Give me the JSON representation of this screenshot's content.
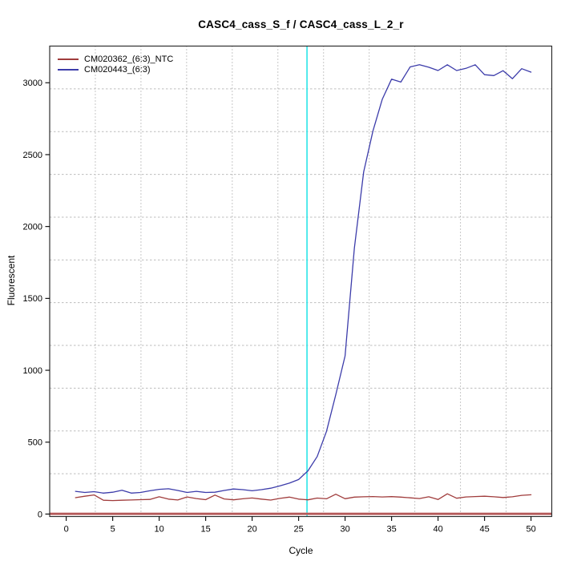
{
  "chart_data": {
    "type": "line",
    "title": "CASC4_cass_S_f / CASC4_cass_L_2_r",
    "xlabel": "Cycle",
    "ylabel": "Fluorescent",
    "xlim": [
      -1.78,
      52.23
    ],
    "ylim": [
      -17,
      3255
    ],
    "xticks": [
      0,
      5,
      10,
      15,
      20,
      25,
      30,
      35,
      40,
      45,
      50
    ],
    "yticks": [
      0,
      500,
      1000,
      1500,
      2000,
      2500,
      3000
    ],
    "grid": {
      "divisions": 11,
      "v_color": "#8f8f8f",
      "h_color": "#bdbdbd",
      "style": "dotted"
    },
    "legend_position": "top-left",
    "x": [
      1,
      2,
      3,
      4,
      5,
      6,
      7,
      8,
      9,
      10,
      11,
      12,
      13,
      14,
      15,
      16,
      17,
      18,
      19,
      20,
      21,
      22,
      23,
      24,
      25,
      26,
      27,
      28,
      29,
      30,
      31,
      32,
      33,
      34,
      35,
      36,
      37,
      38,
      39,
      40,
      41,
      42,
      43,
      44,
      45,
      46,
      47,
      48,
      49,
      50
    ],
    "series": [
      {
        "name": "CM020362_(6:3)_NTC",
        "color": "#a03c3c",
        "values": [
          114,
          124,
          133,
          96,
          94,
          96,
          98,
          100,
          102,
          120,
          104,
          98,
          119,
          108,
          100,
          132,
          105,
          99,
          106,
          112,
          104,
          97,
          109,
          118,
          104,
          99,
          111,
          106,
          138,
          107,
          118,
          120,
          122,
          119,
          121,
          118,
          113,
          108,
          120,
          101,
          141,
          110,
          119,
          122,
          124,
          120,
          115,
          120,
          130,
          134
        ]
      },
      {
        "name": "CM020443_(6:3)",
        "color": "#3c3caa",
        "values": [
          158,
          150,
          156,
          146,
          152,
          166,
          146,
          150,
          162,
          172,
          176,
          164,
          150,
          158,
          150,
          152,
          164,
          174,
          170,
          162,
          170,
          180,
          196,
          215,
          240,
          300,
          400,
          575,
          830,
          1100,
          1850,
          2380,
          2665,
          2885,
          3025,
          3005,
          3110,
          3125,
          3108,
          3085,
          3125,
          3085,
          3100,
          3125,
          3056,
          3050,
          3084,
          3028,
          3098,
          3074
        ]
      }
    ],
    "threshold_vline": {
      "x": 25.9,
      "color": "#2ae4e8"
    },
    "baseline_hline": {
      "y": 0,
      "color_outer": "#cc7a7a",
      "color_inner": "#9e3a3a"
    },
    "axis_color": "#2e2e2e",
    "tick_font_px": 11
  }
}
